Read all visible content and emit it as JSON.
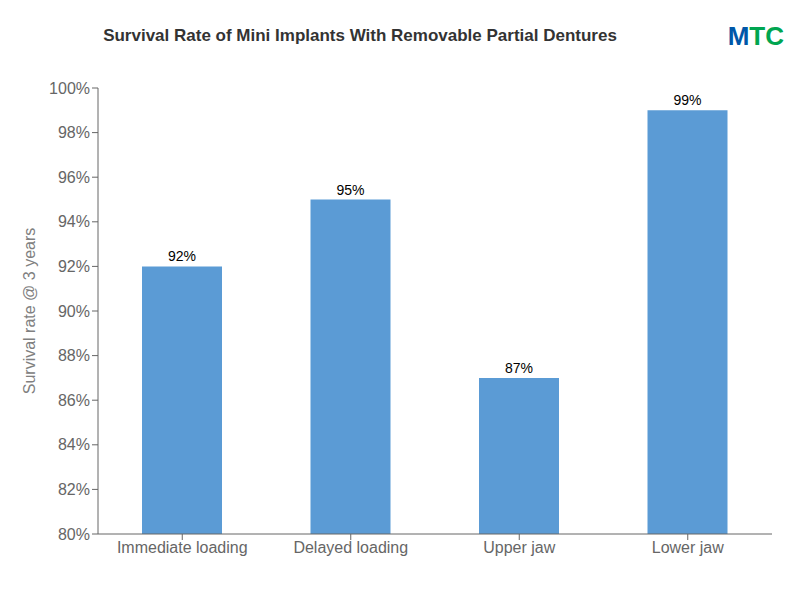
{
  "chart_data": {
    "type": "bar",
    "title": "Survival Rate of Mini Implants With Removable Partial Dentures",
    "categories": [
      "Immediate loading",
      "Delayed loading",
      "Upper jaw",
      "Lower jaw"
    ],
    "values": [
      92,
      95,
      87,
      99
    ],
    "value_labels": [
      "92%",
      "95%",
      "87%",
      "99%"
    ],
    "data_labels": true,
    "color": "#5B9BD5",
    "ylabel": "Survival rate  @ 3 years",
    "ylim": [
      80,
      100
    ],
    "yticks": [
      {
        "value": 80,
        "label": "80%"
      },
      {
        "value": 82,
        "label": "82%"
      },
      {
        "value": 84,
        "label": "84%"
      },
      {
        "value": 86,
        "label": "86%"
      },
      {
        "value": 88,
        "label": "88%"
      },
      {
        "value": 90,
        "label": "90%"
      },
      {
        "value": 92,
        "label": "92%"
      },
      {
        "value": 94,
        "label": "94%"
      },
      {
        "value": 96,
        "label": "96%"
      },
      {
        "value": 98,
        "label": "98%"
      },
      {
        "value": 100,
        "label": "100%"
      }
    ],
    "grid": false,
    "annotations": [
      {
        "text": "M",
        "color": "#0057A8"
      },
      {
        "text": "TC",
        "color": "#00A550"
      }
    ]
  }
}
